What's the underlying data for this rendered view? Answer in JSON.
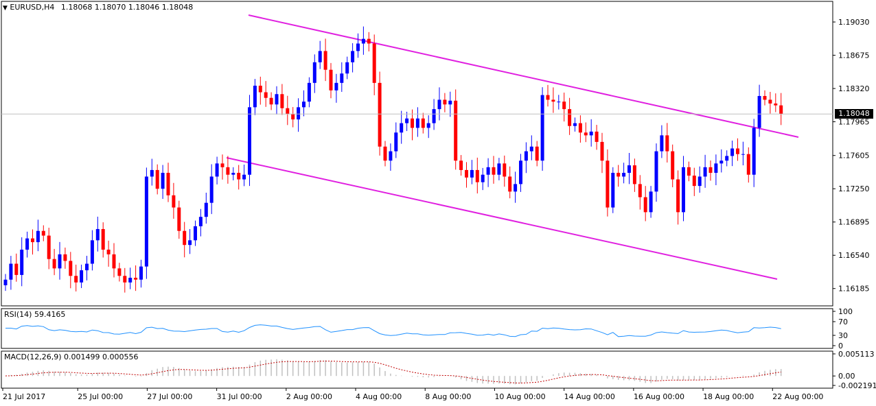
{
  "main": {
    "symbol": "EURUSD,H4",
    "ohlc": "1.18068 1.18070 1.18046 1.18048",
    "current_price": "1.18048",
    "price_min": 1.16,
    "price_max": 1.1925,
    "price_ticks": [
      "1.19030",
      "1.18675",
      "1.18320",
      "1.17965",
      "1.17605",
      "1.17250",
      "1.16895",
      "1.16540",
      "1.16185"
    ]
  },
  "rsi": {
    "label": "RSI(14) 59.4165",
    "ticks": [
      "100",
      "70",
      "30",
      "0"
    ]
  },
  "macd": {
    "label": "MACD(12,26,9) 0.001499 0.000556",
    "ticks": [
      "0.005113",
      "0.00",
      "-0.002191"
    ]
  },
  "time_axis": {
    "labels": [
      "21 Jul 2017",
      "25 Jul 00:00",
      "27 Jul 00:00",
      "31 Jul 00:00",
      "2 Aug 00:00",
      "4 Aug 00:00",
      "8 Aug 00:00",
      "10 Aug 00:00",
      "14 Aug 00:00",
      "16 Aug 00:00",
      "18 Aug 00:00",
      "22 Aug 00:00"
    ]
  },
  "colors": {
    "bull": "#0000ff",
    "bear": "#ff0000",
    "channel": "#e020e0",
    "rsi_line": "#1e90ff",
    "macd_hist": "#c0c0c0",
    "macd_signal": "#c00000"
  },
  "chart_data": {
    "type": "candlestick",
    "symbol": "EURUSD",
    "timeframe": "H4",
    "ylim": [
      1.16,
      1.1925
    ],
    "start_close": 1.1622,
    "closes": [
      1.1628,
      1.1645,
      1.1633,
      1.166,
      1.1672,
      1.1668,
      1.168,
      1.1675,
      1.165,
      1.164,
      1.1655,
      1.1648,
      1.1632,
      1.1625,
      1.1638,
      1.1645,
      1.167,
      1.1682,
      1.166,
      1.1655,
      1.164,
      1.1632,
      1.1625,
      1.163,
      1.1628,
      1.1642,
      1.1738,
      1.1745,
      1.1725,
      1.1742,
      1.1718,
      1.1705,
      1.168,
      1.1665,
      1.167,
      1.1685,
      1.1695,
      1.171,
      1.1738,
      1.1752,
      1.1748,
      1.174,
      1.1742,
      1.1735,
      1.174,
      1.1812,
      1.1835,
      1.1828,
      1.1822,
      1.1815,
      1.1826,
      1.1811,
      1.1805,
      1.1799,
      1.1812,
      1.1818,
      1.1838,
      1.186,
      1.1872,
      1.1852,
      1.183,
      1.1838,
      1.1848,
      1.186,
      1.1872,
      1.188,
      1.1885,
      1.188,
      1.1838,
      1.177,
      1.1755,
      1.1765,
      1.1785,
      1.1795,
      1.18,
      1.179,
      1.18,
      1.179,
      1.1795,
      1.181,
      1.182,
      1.1815,
      1.1819,
      1.1755,
      1.1745,
      1.1737,
      1.1745,
      1.1732,
      1.174,
      1.1748,
      1.174,
      1.1752,
      1.1738,
      1.1722,
      1.173,
      1.1755,
      1.1765,
      1.177,
      1.1755,
      1.1825,
      1.182,
      1.1818,
      1.1818,
      1.181,
      1.1792,
      1.1795,
      1.1785,
      1.1782,
      1.1786,
      1.1775,
      1.1755,
      1.1705,
      1.1742,
      1.1738,
      1.1742,
      1.175,
      1.173,
      1.1716,
      1.17,
      1.1722,
      1.1765,
      1.1782,
      1.1765,
      1.1735,
      1.17,
      1.1748,
      1.1739,
      1.1728,
      1.1738,
      1.1748,
      1.1742,
      1.1752,
      1.1755,
      1.176,
      1.1768,
      1.1762,
      1.1762,
      1.174,
      1.179,
      1.1824,
      1.182,
      1.1816,
      1.1814,
      1.1805
    ]
  }
}
